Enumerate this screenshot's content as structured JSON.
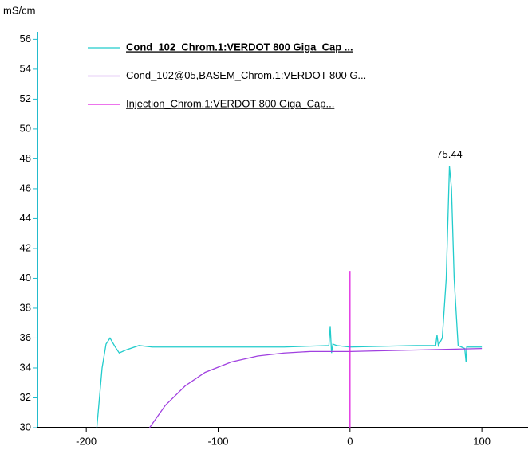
{
  "chart_data": {
    "type": "line",
    "y_label": "mS/cm",
    "annotation": "75.44",
    "xlim": [
      -237,
      135
    ],
    "ylim": [
      30,
      56.5
    ],
    "xticks": [
      -200,
      -100,
      0,
      100
    ],
    "yticks": [
      30,
      32,
      34,
      36,
      38,
      40,
      42,
      44,
      46,
      48,
      50,
      52,
      54,
      56
    ],
    "series": [
      {
        "name": "Cond_102_Chrom.1:VERDOT 800 Giga_Cap ...",
        "color": "#22cccc",
        "x": [
          -192,
          -188,
          -185,
          -182,
          -178,
          -175,
          -170,
          -160,
          -150,
          -100,
          -50,
          -16,
          -15,
          -14,
          -13,
          -10,
          0,
          50,
          65,
          66,
          67,
          70,
          73,
          75.44,
          77,
          79,
          82,
          87,
          88,
          88.5,
          95,
          100
        ],
        "values": [
          30,
          34,
          35.6,
          36.0,
          35.4,
          35.0,
          35.2,
          35.5,
          35.4,
          35.4,
          35.4,
          35.5,
          36.8,
          35.0,
          35.6,
          35.5,
          35.4,
          35.5,
          35.5,
          36.2,
          35.5,
          36.0,
          40,
          47.5,
          46,
          40,
          35.5,
          35.3,
          34.4,
          35.4,
          35.4,
          35.4
        ]
      },
      {
        "name": "Cond_102@05,BASEM_Chrom.1:VERDOT 800 G...",
        "color": "#a040e0",
        "x": [
          -152,
          -140,
          -125,
          -110,
          -90,
          -70,
          -50,
          -30,
          0,
          50,
          100
        ],
        "values": [
          30,
          31.5,
          32.8,
          33.7,
          34.4,
          34.8,
          35.0,
          35.1,
          35.1,
          35.2,
          35.3
        ]
      },
      {
        "name": "Injection_Chrom.1:VERDOT 800 Giga_Cap...",
        "color": "#e020e0",
        "x": [
          0,
          0
        ],
        "values": [
          30,
          40.5
        ]
      }
    ]
  }
}
